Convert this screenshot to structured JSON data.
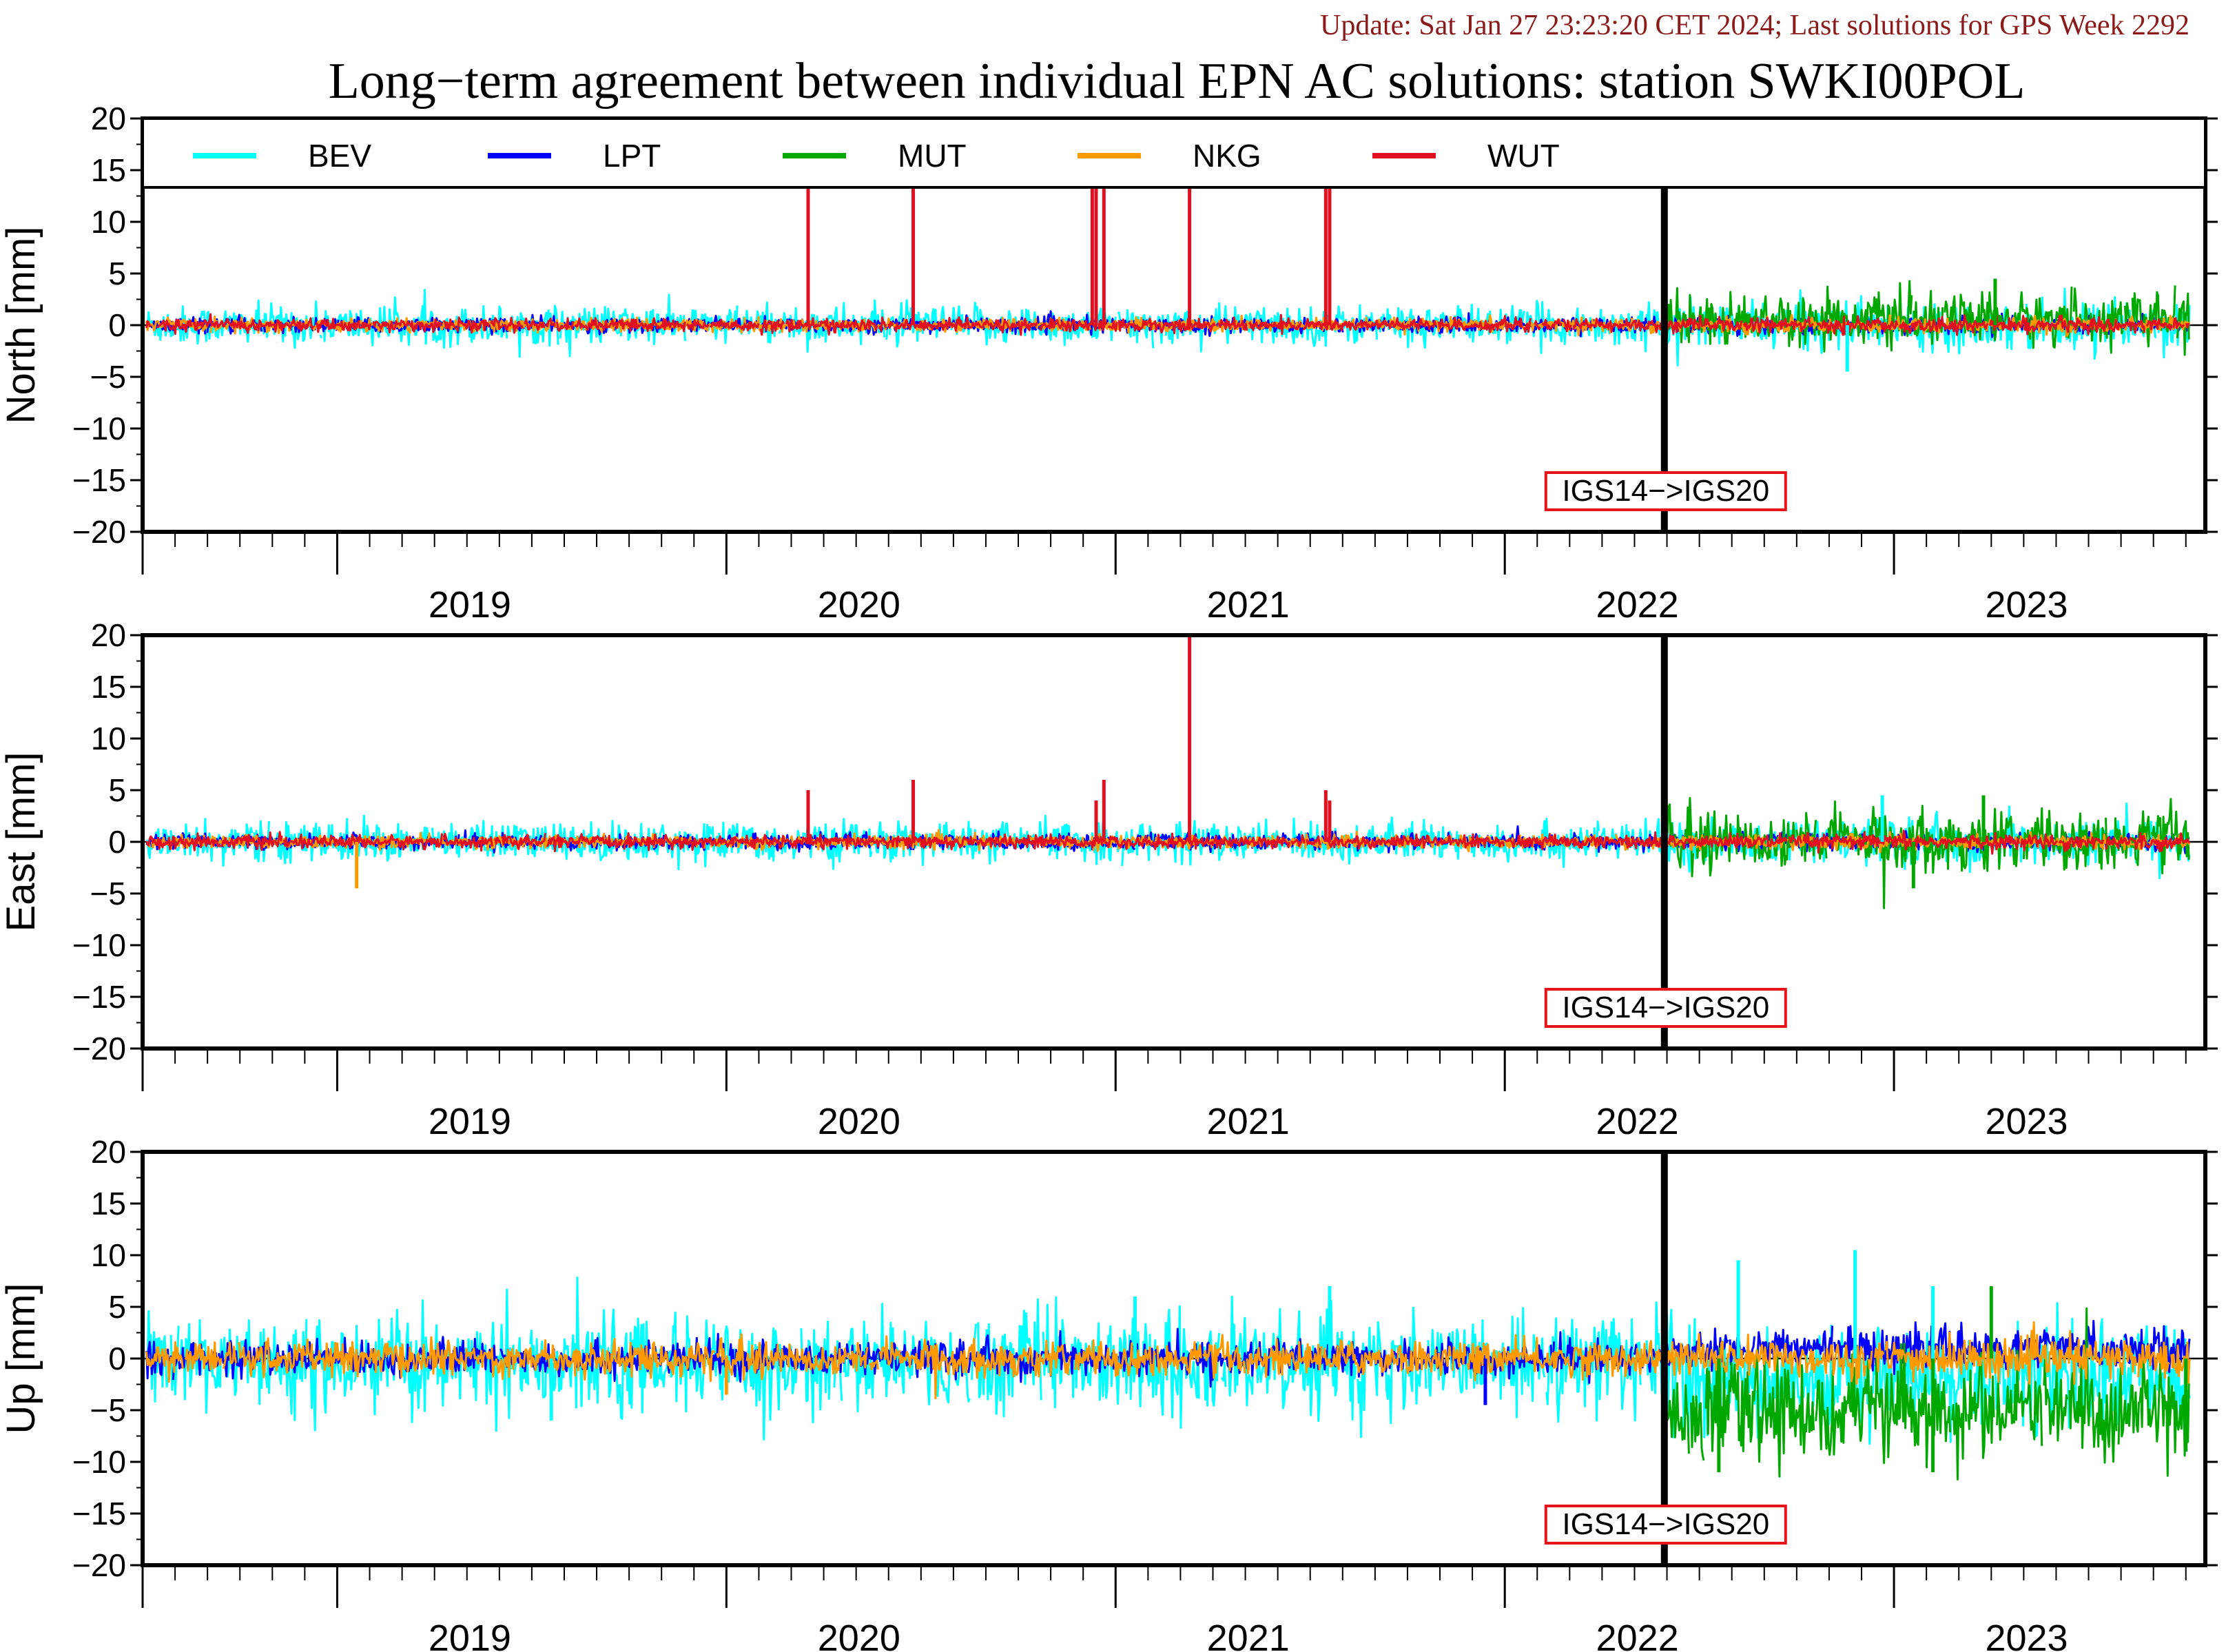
{
  "header": {
    "update_text": "Update: Sat Jan 27 23:23:20 CET 2024; Last solutions for GPS Week 2292",
    "title": "Long−term agreement between individual EPN AC solutions: station SWKI00POL"
  },
  "colors": {
    "update_text": "#8b1a1a",
    "annotation_box": "#e8141c"
  },
  "legend": [
    {
      "name": "BEV",
      "color": "#00ffff"
    },
    {
      "name": "LPT",
      "color": "#0000ff"
    },
    {
      "name": "MUT",
      "color": "#00a800"
    },
    {
      "name": "NKG",
      "color": "#ff9900"
    },
    {
      "name": "WUT",
      "color": "#e01020"
    }
  ],
  "chart_data": [
    {
      "type": "line",
      "ylabel": "North [mm]",
      "ylim": [
        -20,
        20
      ],
      "yticks": [
        20,
        15,
        10,
        5,
        0,
        -5,
        -10,
        -15,
        -20
      ],
      "xlim": [
        2018.5,
        2023.8
      ],
      "year_labels": [
        "2019",
        "2020",
        "2021",
        "2022",
        "2023"
      ],
      "reference_change": {
        "x": 2022.41,
        "label": "IGS14−>IGS20"
      },
      "series_noise": {
        "BEV": 0.9,
        "LPT": 0.35,
        "MUT": 1.0,
        "NKG": 0.3,
        "WUT": 0.3
      },
      "series_offset_after_change": {
        "MUT": 0.6
      },
      "series_span": {
        "MUT": [
          2022.41,
          2023.76
        ]
      },
      "spikes": [
        {
          "series": "WUT",
          "x": 2020.21,
          "y": 20
        },
        {
          "series": "WUT",
          "x": 2020.48,
          "y": 20
        },
        {
          "series": "WUT",
          "x": 2020.94,
          "y": 20
        },
        {
          "series": "WUT",
          "x": 2020.95,
          "y": 20
        },
        {
          "series": "WUT",
          "x": 2020.97,
          "y": 20
        },
        {
          "series": "WUT",
          "x": 2021.19,
          "y": 20
        },
        {
          "series": "WUT",
          "x": 2021.54,
          "y": 20
        },
        {
          "series": "WUT",
          "x": 2021.55,
          "y": 20
        },
        {
          "series": "MUT",
          "x": 2023.26,
          "y": 4.5
        },
        {
          "series": "BEV",
          "x": 2022.88,
          "y": -4.5
        }
      ]
    },
    {
      "type": "line",
      "ylabel": "East [mm]",
      "ylim": [
        -20,
        20
      ],
      "yticks": [
        20,
        15,
        10,
        5,
        0,
        -5,
        -10,
        -15,
        -20
      ],
      "xlim": [
        2018.5,
        2023.8
      ],
      "year_labels": [
        "2019",
        "2020",
        "2021",
        "2022",
        "2023"
      ],
      "reference_change": {
        "x": 2022.41,
        "label": "IGS14−>IGS20"
      },
      "series_noise": {
        "BEV": 0.9,
        "LPT": 0.35,
        "MUT": 1.2,
        "NKG": 0.3,
        "WUT": 0.3
      },
      "series_offset_after_change": {
        "MUT": 0.2
      },
      "series_span": {
        "MUT": [
          2022.41,
          2023.76
        ]
      },
      "spikes": [
        {
          "series": "WUT",
          "x": 2020.21,
          "y": 5
        },
        {
          "series": "WUT",
          "x": 2020.48,
          "y": 6
        },
        {
          "series": "WUT",
          "x": 2020.95,
          "y": 4
        },
        {
          "series": "WUT",
          "x": 2020.97,
          "y": 6
        },
        {
          "series": "WUT",
          "x": 2021.19,
          "y": 20
        },
        {
          "series": "WUT",
          "x": 2021.54,
          "y": 5
        },
        {
          "series": "WUT",
          "x": 2021.55,
          "y": 4
        },
        {
          "series": "NKG",
          "x": 2019.05,
          "y": -4.5
        },
        {
          "series": "MUT",
          "x": 2023.23,
          "y": 4.5
        },
        {
          "series": "MUT",
          "x": 2023.05,
          "y": -4.5
        },
        {
          "series": "BEV",
          "x": 2022.97,
          "y": 4.5
        }
      ]
    },
    {
      "type": "line",
      "ylabel": "Up [mm]",
      "ylim": [
        -20,
        20
      ],
      "yticks": [
        20,
        15,
        10,
        5,
        0,
        -5,
        -10,
        -15,
        -20
      ],
      "xlim": [
        2018.5,
        2023.8
      ],
      "year_labels": [
        "2019",
        "2020",
        "2021",
        "2022",
        "2023"
      ],
      "reference_change": {
        "x": 2022.41,
        "label": "IGS14−>IGS20"
      },
      "series_noise": {
        "BEV": 2.2,
        "LPT": 0.8,
        "MUT": 2.0,
        "NKG": 0.8,
        "WUT": 0.0
      },
      "series_offset_after_change": {
        "MUT": -5.0,
        "BEV": -1.5,
        "LPT": 1.0
      },
      "series_span": {
        "MUT": [
          2022.41,
          2023.76
        ],
        "WUT": [
          0,
          0
        ]
      },
      "spikes": [
        {
          "series": "BEV",
          "x": 2019.55,
          "y": -6
        },
        {
          "series": "BEV",
          "x": 2021.05,
          "y": 6
        },
        {
          "series": "BEV",
          "x": 2021.55,
          "y": 7
        },
        {
          "series": "BEV",
          "x": 2022.6,
          "y": 9.5
        },
        {
          "series": "BEV",
          "x": 2022.9,
          "y": 10.5
        },
        {
          "series": "BEV",
          "x": 2023.1,
          "y": 7
        },
        {
          "series": "MUT",
          "x": 2022.55,
          "y": -11
        },
        {
          "series": "MUT",
          "x": 2023.1,
          "y": -11
        },
        {
          "series": "MUT",
          "x": 2023.25,
          "y": 7
        },
        {
          "series": "MUT",
          "x": 2023.75,
          "y": -9
        },
        {
          "series": "LPT",
          "x": 2021.95,
          "y": -4.5
        },
        {
          "series": "NKG",
          "x": 2020.0,
          "y": -3.5
        }
      ]
    }
  ]
}
